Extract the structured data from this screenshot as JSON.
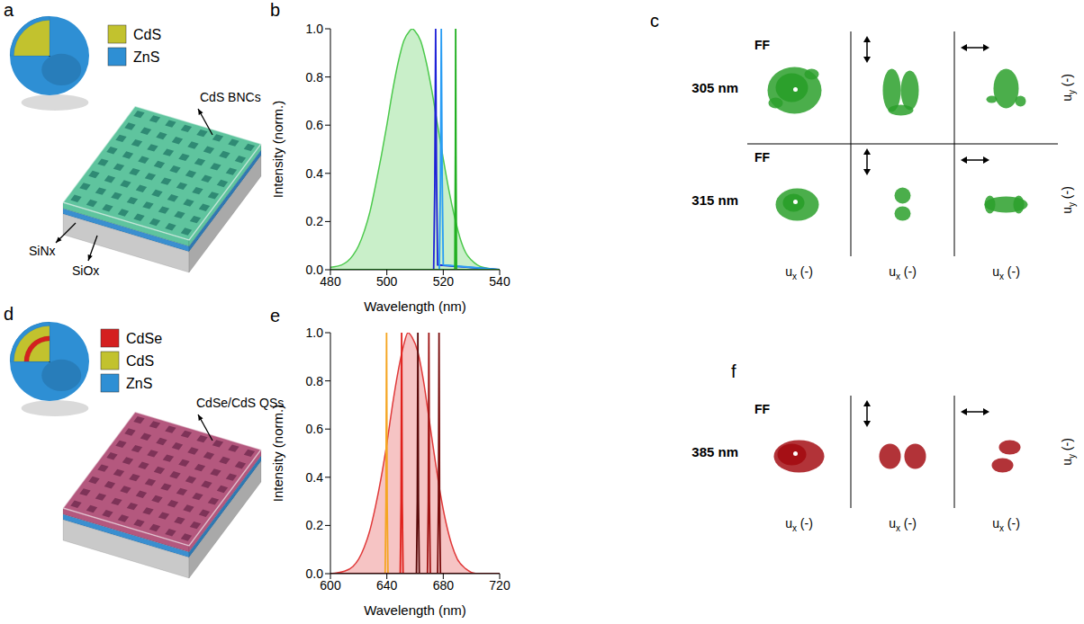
{
  "chart_data": [
    {
      "panel": "b",
      "type": "line",
      "xlabel": "Wavelength (nm)",
      "ylabel": "Intensity (norm.)",
      "xlim": [
        480,
        540
      ],
      "xticks": [
        480,
        500,
        520,
        540
      ],
      "ylim": [
        0,
        1
      ],
      "yticks": [
        {
          "value": 0,
          "label": "0.0"
        },
        {
          "value": 0.2,
          "label": "0.2"
        },
        {
          "value": 0.4,
          "label": "0.4"
        },
        {
          "value": 0.6,
          "label": "0.6"
        },
        {
          "value": 0.8,
          "label": "0.8"
        },
        {
          "value": 1,
          "label": "1.0"
        }
      ],
      "series": [
        {
          "type": "area",
          "color": "#4cc94c",
          "x": [
            480,
            484,
            488,
            490,
            492,
            494,
            496,
            498,
            500,
            502,
            504,
            506,
            508,
            509,
            510,
            512,
            514,
            516,
            518,
            520,
            522,
            524,
            526,
            528,
            530,
            534,
            540
          ],
          "values": [
            0.01,
            0.02,
            0.06,
            0.1,
            0.16,
            0.24,
            0.35,
            0.47,
            0.6,
            0.74,
            0.86,
            0.95,
            0.99,
            1.0,
            0.99,
            0.95,
            0.86,
            0.74,
            0.6,
            0.46,
            0.33,
            0.22,
            0.13,
            0.07,
            0.04,
            0.01,
            0.0
          ]
        },
        {
          "type": "line",
          "color": "#1f22d8",
          "x": [
            480,
            516.6,
            517.0,
            517.3,
            517.6,
            518.0,
            540
          ],
          "values": [
            0,
            0,
            0.35,
            1.0,
            0.4,
            0.02,
            0
          ]
        },
        {
          "type": "line",
          "color": "#2a9df4",
          "x": [
            480,
            518.6,
            519.0,
            519.3,
            519.6,
            520.0,
            540
          ],
          "values": [
            0,
            0,
            0.35,
            1.0,
            0.4,
            0.02,
            0
          ]
        },
        {
          "type": "line",
          "color": "#22b022",
          "x": [
            480,
            524.1,
            524.3,
            524.4,
            524.5,
            524.7,
            540
          ],
          "values": [
            0,
            0,
            0.5,
            1.0,
            0.5,
            0,
            0
          ]
        }
      ]
    },
    {
      "panel": "e",
      "type": "line",
      "xlabel": "Wavelength (nm)",
      "ylabel": "Intensity (norm.)",
      "xlim": [
        600,
        720
      ],
      "xticks": [
        600,
        640,
        680,
        720
      ],
      "ylim": [
        0,
        1
      ],
      "yticks": [
        {
          "value": 0,
          "label": "0.0"
        },
        {
          "value": 0.2,
          "label": "0.2"
        },
        {
          "value": 0.4,
          "label": "0.4"
        },
        {
          "value": 0.6,
          "label": "0.6"
        },
        {
          "value": 0.8,
          "label": "0.8"
        },
        {
          "value": 1,
          "label": "1.0"
        }
      ],
      "series": [
        {
          "type": "area",
          "color": "#e03a3a",
          "x": [
            600,
            610,
            616,
            620,
            624,
            628,
            632,
            636,
            640,
            644,
            648,
            652,
            655,
            658,
            662,
            666,
            670,
            674,
            678,
            682,
            686,
            690,
            696,
            704,
            720
          ],
          "values": [
            0,
            0.01,
            0.03,
            0.06,
            0.11,
            0.18,
            0.28,
            0.4,
            0.54,
            0.7,
            0.84,
            0.95,
            1.0,
            0.98,
            0.92,
            0.8,
            0.64,
            0.48,
            0.33,
            0.21,
            0.12,
            0.06,
            0.02,
            0,
            0
          ]
        },
        {
          "type": "line",
          "color": "#f5a623",
          "x": [
            600,
            638.8,
            639.4,
            639.8,
            640.2,
            640.8,
            720
          ],
          "values": [
            0,
            0,
            0.3,
            1.0,
            0.3,
            0,
            0
          ]
        },
        {
          "type": "line",
          "color": "#e0201b",
          "x": [
            600,
            649.5,
            650.1,
            650.5,
            650.9,
            651.5,
            720
          ],
          "values": [
            0,
            0,
            0.3,
            1.0,
            0.3,
            0,
            0
          ]
        },
        {
          "type": "line",
          "color": "#5a0a0a",
          "x": [
            600,
            661.0,
            661.6,
            662.0,
            662.4,
            663.0,
            720
          ],
          "values": [
            0,
            0,
            0.3,
            1.0,
            0.3,
            0,
            0
          ]
        },
        {
          "type": "line",
          "color": "#a01515",
          "x": [
            600,
            668.8,
            669.4,
            669.8,
            670.2,
            670.8,
            720
          ],
          "values": [
            0,
            0,
            0.3,
            1.0,
            0.3,
            0,
            0
          ]
        },
        {
          "type": "line",
          "color": "#7a0e0e",
          "x": [
            600,
            676.0,
            676.6,
            677.0,
            677.4,
            678.0,
            720
          ],
          "values": [
            0,
            0,
            0.3,
            1.0,
            0.3,
            0,
            0
          ]
        }
      ]
    }
  ],
  "figure": {
    "a": {
      "letter": "a",
      "legend": [
        {
          "label": "CdS",
          "color": "#c2c22e"
        },
        {
          "label": "ZnS",
          "color": "#2e8fd4"
        }
      ],
      "layer_labels": [
        "CdS BNCs",
        "SiNx",
        "SiOx"
      ],
      "film_color": "#5fc49e"
    },
    "c": {
      "letter": "c",
      "rows": [
        "305 nm",
        "315 nm"
      ],
      "ff_label": "FF",
      "x_label": {
        "base": "u",
        "sub": "x",
        "suffix": " (-)"
      },
      "y_label": {
        "base": "u",
        "sub": "y",
        "suffix": " (-)"
      },
      "color": "#2ca02c"
    },
    "d": {
      "letter": "d",
      "legend": [
        {
          "label": "CdSe",
          "color": "#d42020"
        },
        {
          "label": "CdS",
          "color": "#c2c22e"
        },
        {
          "label": "ZnS",
          "color": "#2e8fd4"
        }
      ],
      "layer_labels": [
        "CdSe/CdS QSs"
      ],
      "film_color": "#b4587e"
    },
    "f": {
      "letter": "f",
      "rows": [
        "385 nm"
      ],
      "ff_label": "FF",
      "x_label": {
        "base": "u",
        "sub": "x",
        "suffix": " (-)"
      },
      "y_label": {
        "base": "u",
        "sub": "y",
        "suffix": " (-)"
      },
      "color": "#a50f15"
    }
  }
}
